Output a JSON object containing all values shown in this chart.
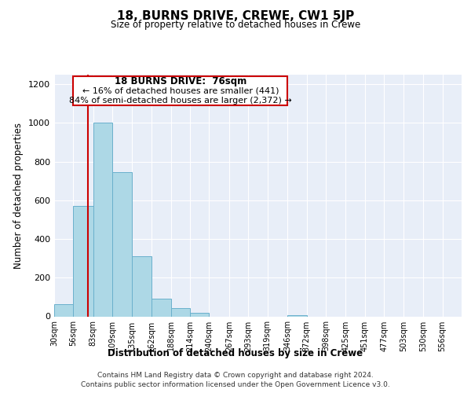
{
  "title": "18, BURNS DRIVE, CREWE, CW1 5JP",
  "subtitle": "Size of property relative to detached houses in Crewe",
  "xlabel": "Distribution of detached houses by size in Crewe",
  "ylabel": "Number of detached properties",
  "bar_labels": [
    "30sqm",
    "56sqm",
    "83sqm",
    "109sqm",
    "135sqm",
    "162sqm",
    "188sqm",
    "214sqm",
    "240sqm",
    "267sqm",
    "293sqm",
    "319sqm",
    "346sqm",
    "372sqm",
    "398sqm",
    "425sqm",
    "451sqm",
    "477sqm",
    "503sqm",
    "530sqm",
    "556sqm"
  ],
  "bar_values": [
    65,
    570,
    1000,
    745,
    310,
    93,
    42,
    20,
    0,
    0,
    0,
    0,
    7,
    0,
    0,
    0,
    0,
    0,
    0,
    0,
    0
  ],
  "bar_color": "#add8e6",
  "bar_edge_color": "#6ab0cc",
  "property_line_label": "18 BURNS DRIVE:  76sqm",
  "annotation_line1": "← 16% of detached houses are smaller (441)",
  "annotation_line2": "84% of semi-detached houses are larger (2,372) →",
  "annotation_box_color": "#ffffff",
  "annotation_box_edge": "#cc0000",
  "ylim": [
    0,
    1250
  ],
  "yticks": [
    0,
    200,
    400,
    600,
    800,
    1000,
    1200
  ],
  "footer_line1": "Contains HM Land Registry data © Crown copyright and database right 2024.",
  "footer_line2": "Contains public sector information licensed under the Open Government Licence v3.0.",
  "bin_edges": [
    30,
    56,
    83,
    109,
    135,
    162,
    188,
    214,
    240,
    267,
    293,
    319,
    346,
    372,
    398,
    425,
    451,
    477,
    503,
    530,
    556,
    582
  ],
  "red_line_color": "#cc0000",
  "background_color": "#e8eef8",
  "grid_color": "#ffffff",
  "property_sqm": 76
}
